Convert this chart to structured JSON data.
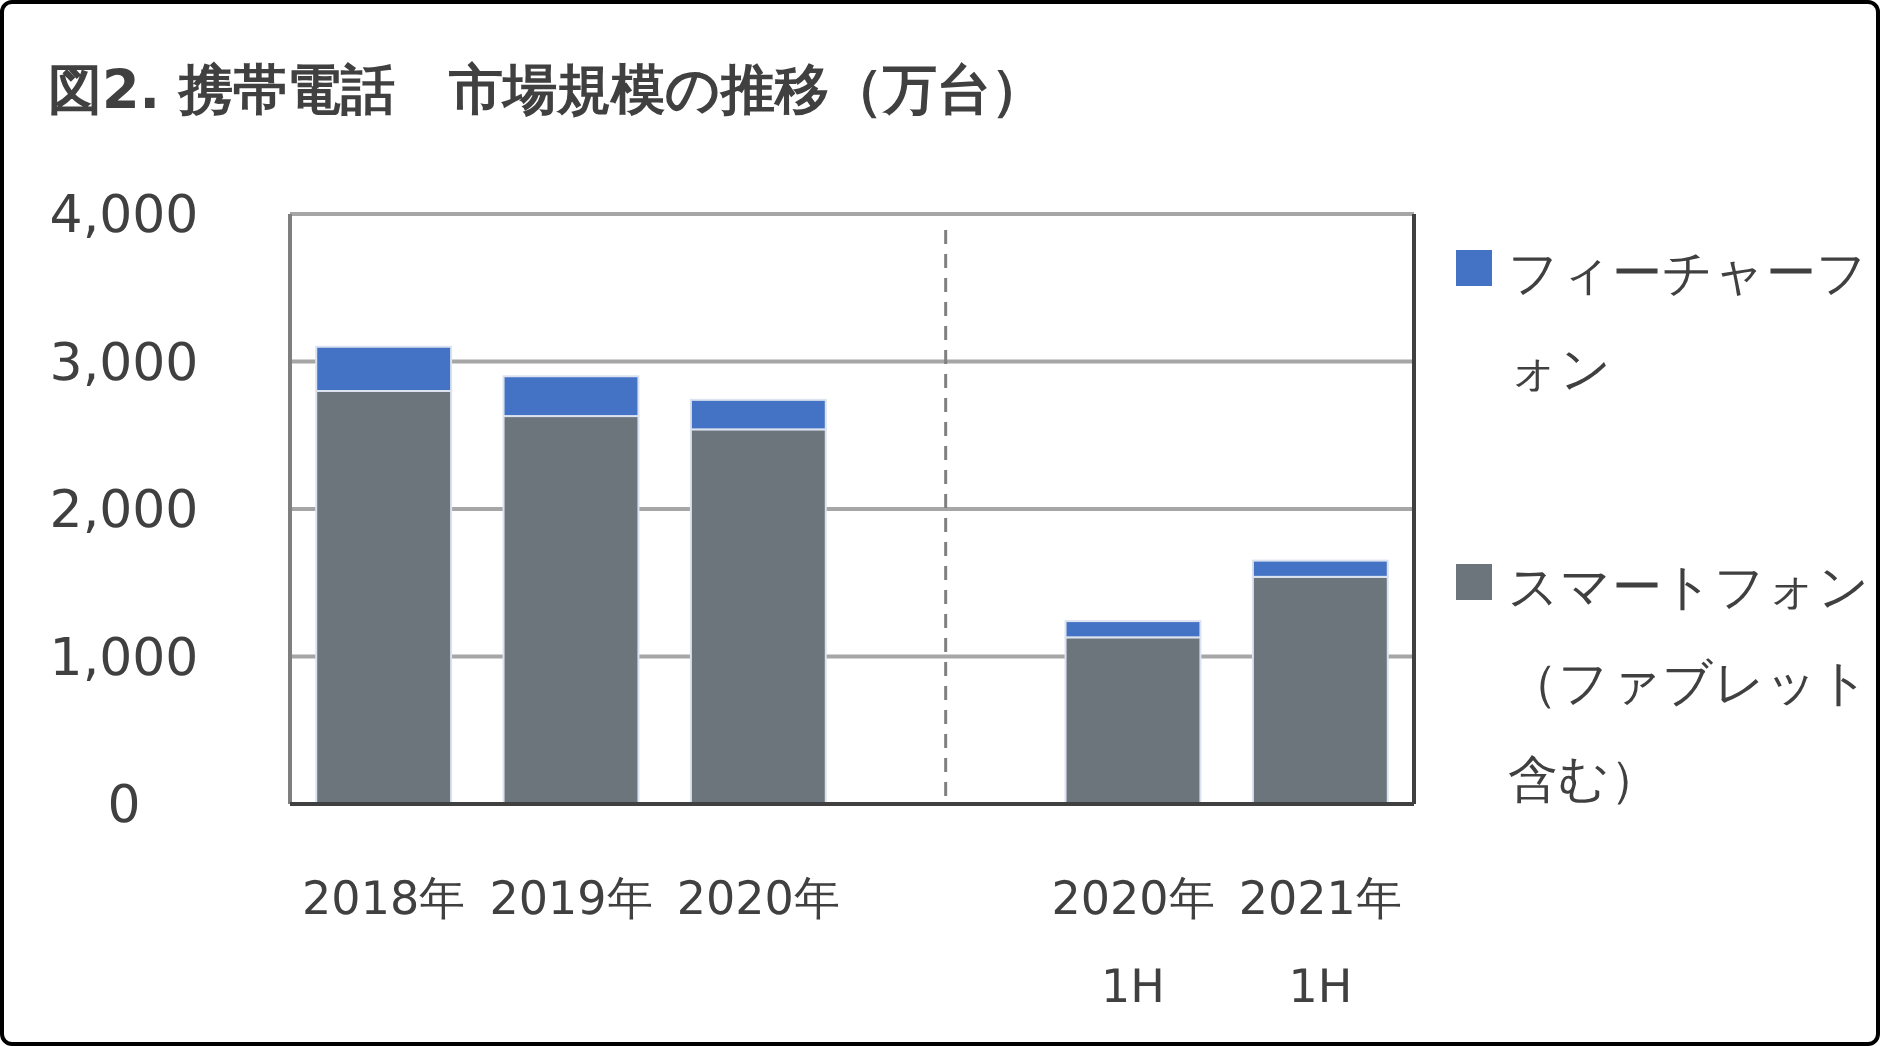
{
  "chart_data": {
    "type": "bar",
    "title": "図2. 携帯電話　市場規模の推移（万台）",
    "categories": [
      "2018年",
      "2019年",
      "2020年",
      null,
      "2020年 1H",
      "2021年 1H"
    ],
    "series": [
      {
        "name": "スマートフォン（ファブレット含む）",
        "color": "#6c757b",
        "values": [
          2800,
          2630,
          2540,
          null,
          1130,
          1540
        ]
      },
      {
        "name": "フィーチャーフォン",
        "color": "#4472c4",
        "values": [
          300,
          270,
          200,
          null,
          110,
          110
        ]
      }
    ],
    "stacked": true,
    "ylim": [
      0,
      4000
    ],
    "yticks": [
      0,
      {
        "value": 1000,
        "label": "1,000"
      },
      {
        "value": 2000,
        "label": "2,000"
      },
      {
        "value": 3000,
        "label": "3,000"
      },
      {
        "value": 4000,
        "label": "4,000"
      }
    ],
    "grid": "y",
    "legend": "right"
  }
}
